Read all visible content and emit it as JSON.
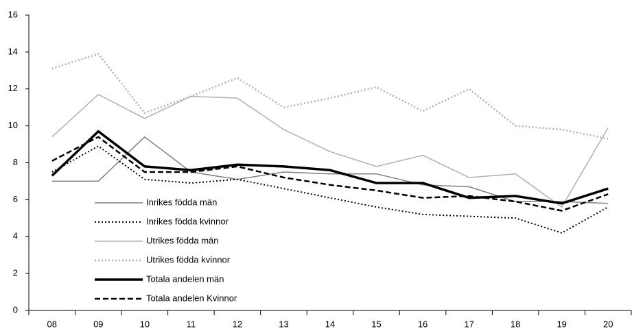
{
  "chart_data": {
    "type": "line",
    "categories": [
      "08",
      "09",
      "10",
      "11",
      "12",
      "13",
      "14",
      "15",
      "16",
      "17",
      "18",
      "19",
      "20"
    ],
    "series": [
      {
        "name": "Inrikes födda män",
        "color": "#7f7f7f",
        "style": "solid",
        "linewidth": 1.5,
        "values": [
          7.0,
          7.0,
          9.4,
          7.5,
          7.1,
          7.5,
          7.4,
          7.4,
          6.8,
          6.7,
          5.9,
          5.9,
          5.8
        ]
      },
      {
        "name": "Inrikes födda kvinnor",
        "color": "#000000",
        "style": "dotted",
        "linewidth": 2,
        "values": [
          7.5,
          8.9,
          7.1,
          6.9,
          7.1,
          6.6,
          6.1,
          5.6,
          5.2,
          5.1,
          5.0,
          4.2,
          5.6
        ]
      },
      {
        "name": "Utrikes födda män",
        "color": "#b0b0b0",
        "style": "solid",
        "linewidth": 1.5,
        "values": [
          9.4,
          11.7,
          10.4,
          11.6,
          11.5,
          9.8,
          8.6,
          7.8,
          8.4,
          7.2,
          7.4,
          5.6,
          9.9
        ]
      },
      {
        "name": "Utrikes födda kvinnor",
        "color": "#b0b0b0",
        "style": "dotted",
        "linewidth": 2.5,
        "values": [
          13.1,
          13.9,
          10.7,
          11.6,
          12.6,
          11.0,
          11.5,
          12.1,
          10.8,
          12.0,
          10.0,
          9.8,
          9.3
        ]
      },
      {
        "name": "Totala andelen män",
        "color": "#000000",
        "style": "solid",
        "linewidth": 3.5,
        "values": [
          7.3,
          9.7,
          7.8,
          7.6,
          7.9,
          7.8,
          7.6,
          6.9,
          6.9,
          6.1,
          6.2,
          5.8,
          6.6
        ]
      },
      {
        "name": "Totala andelen Kvinnor",
        "color": "#000000",
        "style": "dashed",
        "linewidth": 2.5,
        "values": [
          8.1,
          9.4,
          7.5,
          7.5,
          7.8,
          7.2,
          6.8,
          6.5,
          6.1,
          6.2,
          5.9,
          5.4,
          6.3
        ]
      }
    ],
    "ylim": [
      0,
      16
    ],
    "yticks": [
      0,
      2,
      4,
      6,
      8,
      10,
      12,
      14,
      16
    ],
    "grid": false
  }
}
